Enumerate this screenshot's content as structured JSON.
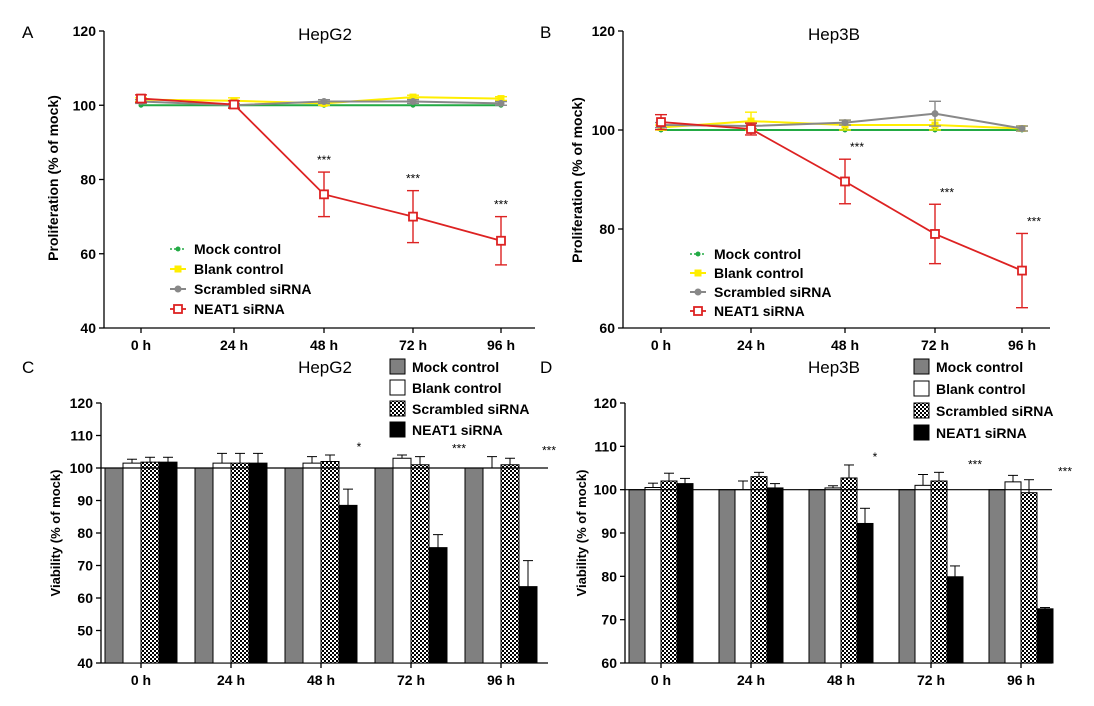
{
  "chart_data": [
    {
      "id": "A",
      "type": "line",
      "panel_label": "A",
      "title": "HepG2",
      "ylabel": "Proliferation (% of mock)",
      "categories": [
        "0 h",
        "24 h",
        "48 h",
        "72 h",
        "96 h"
      ],
      "ylim": [
        40,
        120
      ],
      "yticks": [
        40,
        60,
        80,
        100,
        120
      ],
      "legend_position": "lower-left",
      "series": [
        {
          "name": "Mock control",
          "color": "#22aa44",
          "marker": "circle-small",
          "values": [
            100,
            100,
            100,
            100,
            100
          ],
          "errors": [
            0,
            0,
            0,
            0,
            0
          ]
        },
        {
          "name": "Blank control",
          "color": "#ffee00",
          "marker": "square",
          "values": [
            101.5,
            101.2,
            100.5,
            102.2,
            101.8
          ],
          "errors": [
            0.5,
            0.8,
            0.5,
            0.5,
            0.5
          ]
        },
        {
          "name": "Scrambled siRNA",
          "color": "#888888",
          "marker": "circle",
          "values": [
            101,
            100,
            101,
            101,
            100.5
          ],
          "errors": [
            0.5,
            0.5,
            0.5,
            0.5,
            0.5
          ]
        },
        {
          "name": "NEAT1 siRNA",
          "color": "#dd2222",
          "marker": "square-open",
          "values": [
            101.8,
            100.2,
            76,
            70,
            63.5
          ],
          "errors": [
            1,
            1,
            6,
            7,
            6.5
          ]
        }
      ],
      "annotations": [
        "",
        "",
        "***",
        "***",
        "***"
      ]
    },
    {
      "id": "B",
      "type": "line",
      "panel_label": "B",
      "title": "Hep3B",
      "ylabel": "Proliferation (% of mock)",
      "categories": [
        "0 h",
        "24 h",
        "48 h",
        "72 h",
        "96 h"
      ],
      "ylim": [
        60,
        120
      ],
      "yticks": [
        60,
        80,
        100,
        120
      ],
      "legend_position": "lower-left",
      "series": [
        {
          "name": "Mock control",
          "color": "#22aa44",
          "marker": "circle-small",
          "values": [
            100,
            100,
            100,
            100,
            100
          ],
          "errors": [
            0,
            0,
            0,
            0,
            0
          ]
        },
        {
          "name": "Blank control",
          "color": "#ffee00",
          "marker": "square",
          "values": [
            100.5,
            101.8,
            101,
            101,
            100.3
          ],
          "errors": [
            0.5,
            1.8,
            1,
            1,
            0.5
          ]
        },
        {
          "name": "Scrambled siRNA",
          "color": "#888888",
          "marker": "circle",
          "values": [
            101,
            100.8,
            101.5,
            103.3,
            100.3
          ],
          "errors": [
            0.5,
            0.5,
            0.5,
            2.5,
            0.5
          ]
        },
        {
          "name": "NEAT1 siRNA",
          "color": "#dd2222",
          "marker": "square-open",
          "values": [
            101.6,
            100.2,
            89.6,
            79,
            71.6
          ],
          "errors": [
            1.5,
            1.2,
            4.5,
            6,
            7.5
          ]
        }
      ],
      "annotations": [
        "",
        "",
        "***",
        "***",
        "***"
      ]
    },
    {
      "id": "C",
      "type": "bar",
      "panel_label": "C",
      "title": "HepG2",
      "ylabel": "Viability (% of mock)",
      "categories": [
        "0 h",
        "24 h",
        "48 h",
        "72 h",
        "96 h"
      ],
      "ylim": [
        40,
        120
      ],
      "yticks": [
        40,
        50,
        60,
        70,
        80,
        90,
        100,
        110,
        120
      ],
      "reference_line": 100,
      "legend_position": "top-right",
      "series": [
        {
          "name": "Mock control",
          "fill": "gray",
          "values": [
            100,
            100,
            100,
            100,
            100
          ],
          "errors": [
            0,
            0,
            0,
            0,
            0
          ]
        },
        {
          "name": "Blank control",
          "fill": "white",
          "values": [
            101.5,
            101.5,
            101.5,
            103,
            100
          ],
          "errors": [
            1.2,
            3,
            2,
            1,
            3.5
          ]
        },
        {
          "name": "Scrambled siRNA",
          "fill": "checker",
          "values": [
            101.8,
            101.5,
            102,
            101,
            101
          ],
          "errors": [
            1.5,
            3,
            2,
            2.5,
            2
          ]
        },
        {
          "name": "NEAT1 siRNA",
          "fill": "black",
          "values": [
            101.8,
            101.5,
            88.5,
            75.5,
            63.5
          ],
          "errors": [
            1.5,
            3,
            5,
            4,
            8
          ]
        }
      ],
      "annotations": [
        "",
        "",
        "*",
        "***",
        "***"
      ]
    },
    {
      "id": "D",
      "type": "bar",
      "panel_label": "D",
      "title": "Hep3B",
      "ylabel": "Viability (% of mock)",
      "categories": [
        "0 h",
        "24 h",
        "48 h",
        "72 h",
        "96 h"
      ],
      "ylim": [
        60,
        120
      ],
      "yticks": [
        60,
        70,
        80,
        90,
        100,
        110,
        120
      ],
      "reference_line": 100,
      "legend_position": "top-right",
      "series": [
        {
          "name": "Mock control",
          "fill": "gray",
          "values": [
            100,
            100,
            100,
            100,
            100
          ],
          "errors": [
            0,
            0,
            0,
            0,
            0
          ]
        },
        {
          "name": "Blank control",
          "fill": "white",
          "values": [
            100.5,
            100,
            100.4,
            101,
            101.8
          ],
          "errors": [
            1,
            2,
            0.5,
            2.5,
            1.5
          ]
        },
        {
          "name": "Scrambled siRNA",
          "fill": "checker",
          "values": [
            102,
            103,
            102.7,
            102,
            99.3
          ],
          "errors": [
            1.8,
            1,
            3,
            2,
            3
          ]
        },
        {
          "name": "NEAT1 siRNA",
          "fill": "black",
          "values": [
            101.4,
            100.4,
            92.2,
            79.9,
            72.5
          ],
          "errors": [
            1.2,
            1,
            3.5,
            2.5,
            0.3
          ]
        }
      ],
      "annotations": [
        "",
        "",
        "*",
        "***",
        "***"
      ]
    }
  ]
}
